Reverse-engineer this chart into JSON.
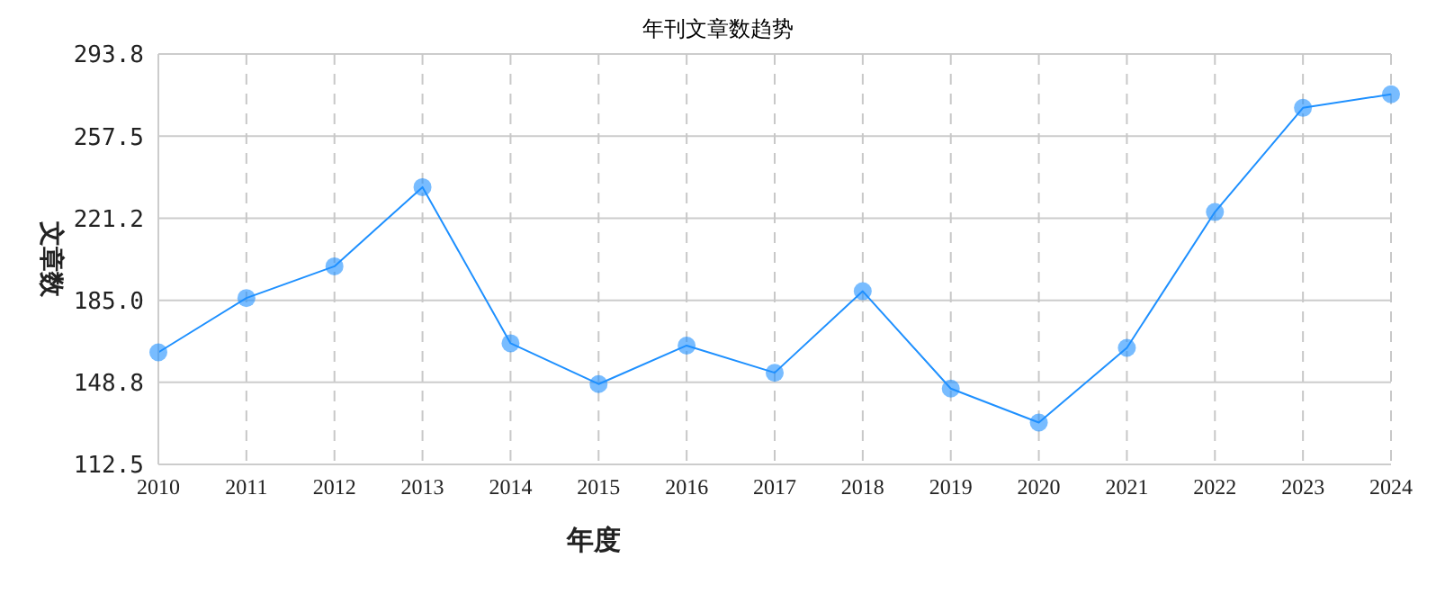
{
  "chart_data": {
    "type": "line",
    "title": "年刊文章数趋势",
    "xlabel": "年度",
    "ylabel": "文章数",
    "categories": [
      "2010",
      "2011",
      "2012",
      "2013",
      "2014",
      "2015",
      "2016",
      "2017",
      "2018",
      "2019",
      "2020",
      "2021",
      "2022",
      "2023",
      "2024"
    ],
    "series": [
      {
        "color": "#1e90ff",
        "values": [
          162,
          186,
          200,
          235,
          166,
          148,
          165,
          153,
          189,
          146,
          131,
          164,
          224,
          270,
          276
        ]
      }
    ],
    "ylim": [
      112.5,
      293.8
    ],
    "yticks": [
      {
        "value": 112.5,
        "label": "112.5"
      },
      {
        "value": 148.8,
        "label": "148.8"
      },
      {
        "value": 185,
        "label": "185.0"
      },
      {
        "value": 221.2,
        "label": "221.2"
      },
      {
        "value": 257.5,
        "label": "257.5"
      },
      {
        "value": 293.8,
        "label": "293.8"
      }
    ],
    "grid": true,
    "marker": "circle",
    "line_style": "solid",
    "legend": false
  }
}
